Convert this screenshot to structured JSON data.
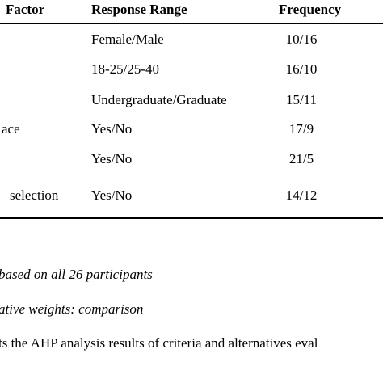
{
  "table": {
    "header": [
      "Factor",
      "Response Range",
      "Frequency"
    ],
    "rows": [
      [
        "",
        "Female/Male",
        "10/16"
      ],
      [
        "",
        "18-25/25-40",
        "16/10"
      ],
      [
        "",
        "Undergraduate/Graduate",
        "15/11"
      ],
      [
        "ace",
        "Yes/No",
        "17/9"
      ],
      [
        "",
        "Yes/No",
        "21/5"
      ],
      [
        "selection",
        "Yes/No",
        "14/12"
      ]
    ]
  },
  "notes": [
    "based on all 26 participants",
    "ative weights: comparison"
  ],
  "paragraph": "ts the AHP analysis results of criteria and alternatives eval"
}
